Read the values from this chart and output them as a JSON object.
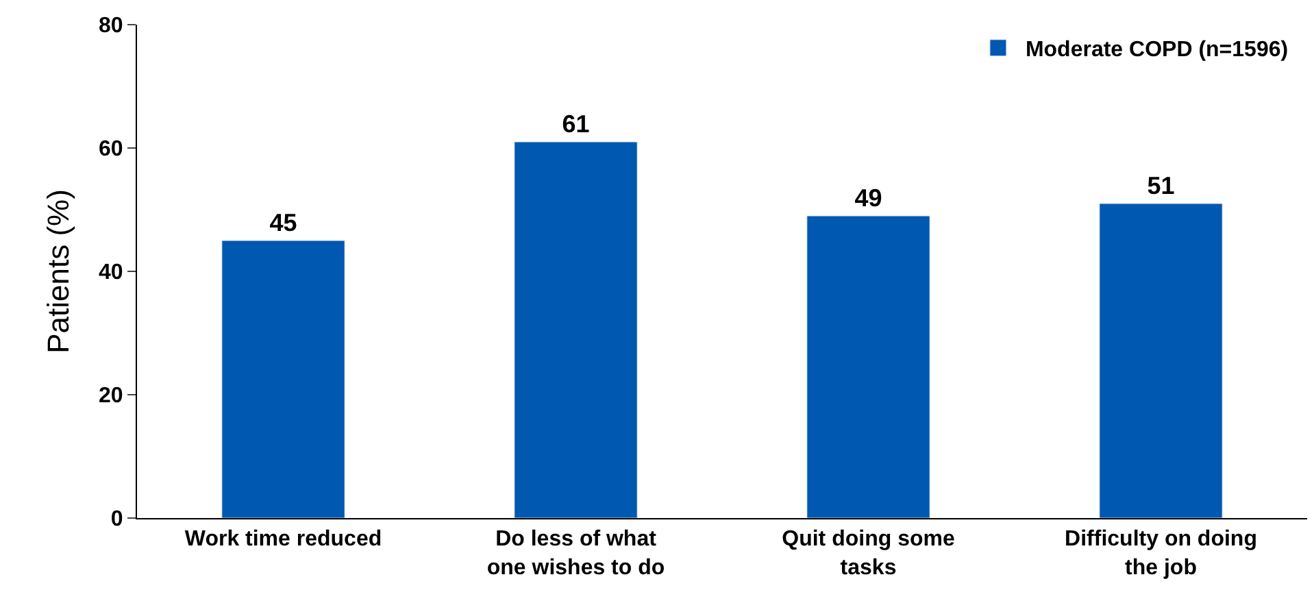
{
  "chart_data": {
    "type": "bar",
    "ylabel": "Patients (%)",
    "categories": [
      "Work time reduced",
      "Do less of what\none wishes to do",
      "Quit doing some\ntasks",
      "Difficulty on doing\nthe job"
    ],
    "series": [
      {
        "name": "Moderate COPD (n=1596)",
        "color": "#0058b0",
        "values": [
          45,
          61,
          49,
          51
        ]
      }
    ],
    "ylim": [
      0,
      80
    ],
    "yticks": [
      0,
      20,
      40,
      60,
      80
    ],
    "data_labels": true,
    "legend": "top right"
  }
}
